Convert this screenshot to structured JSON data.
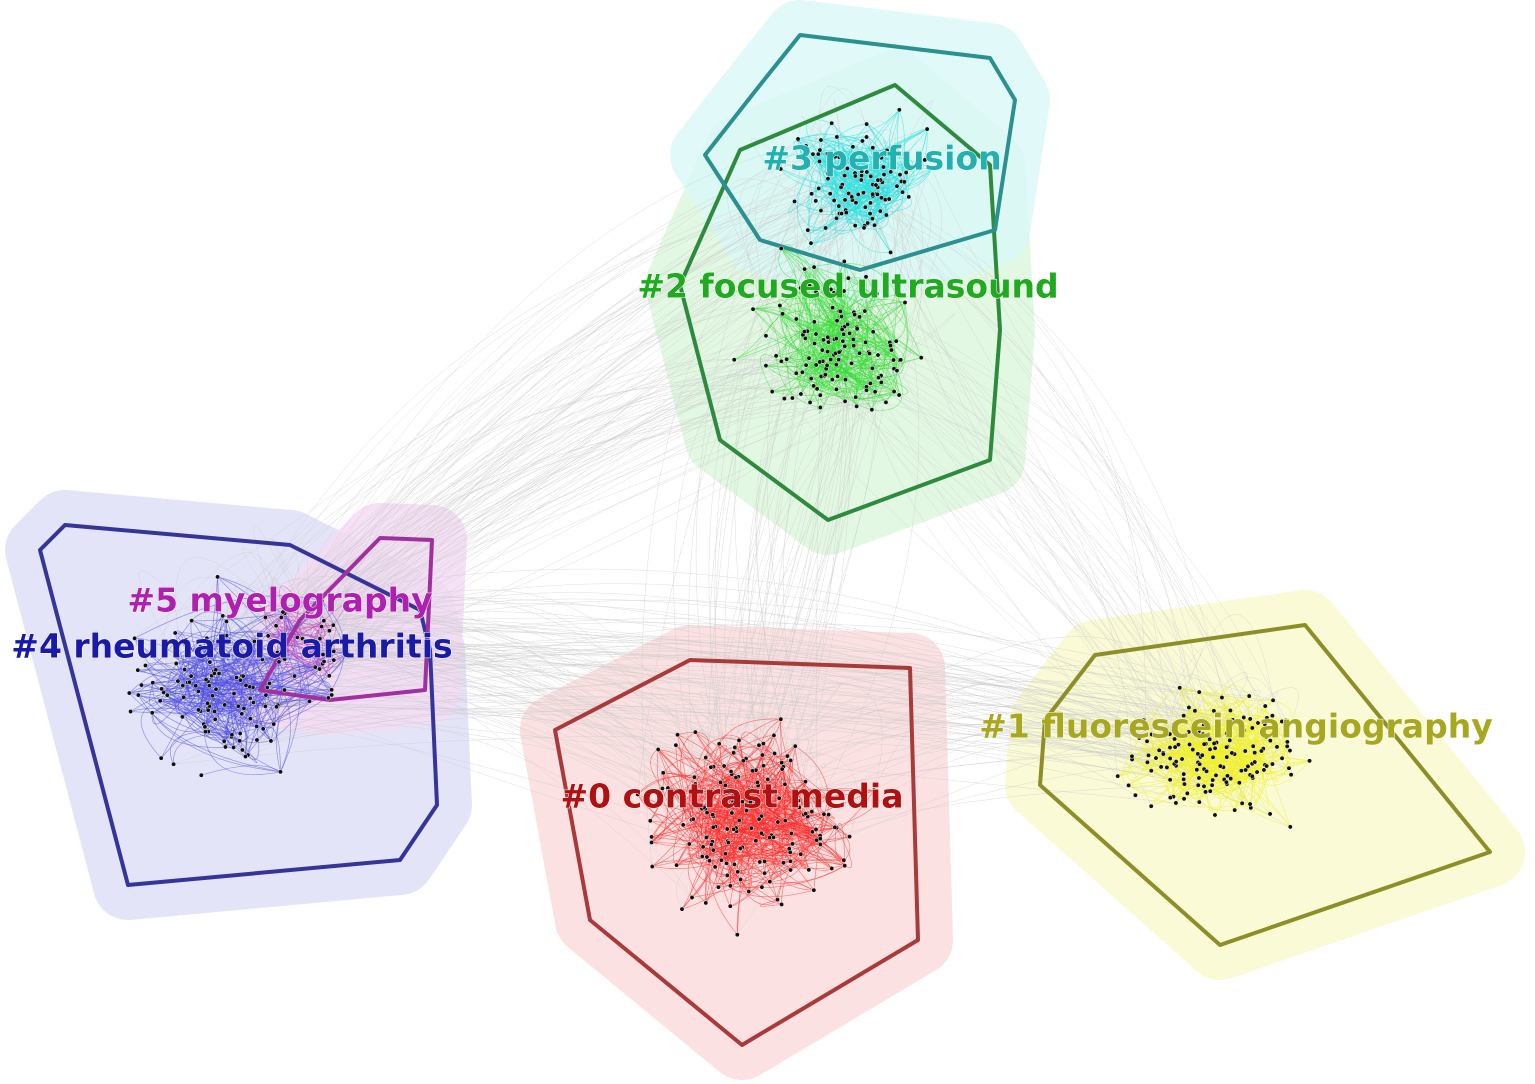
{
  "clusters": [
    {
      "label": "#0 contrast media"
    },
    {
      "label": "#1 fluorescein angiography"
    },
    {
      "label": "#2 focused ultrasound"
    },
    {
      "label": "#3 perfusion"
    },
    {
      "label": "#4 rheumatoid arthritis"
    },
    {
      "label": "#5 myelography"
    }
  ]
}
